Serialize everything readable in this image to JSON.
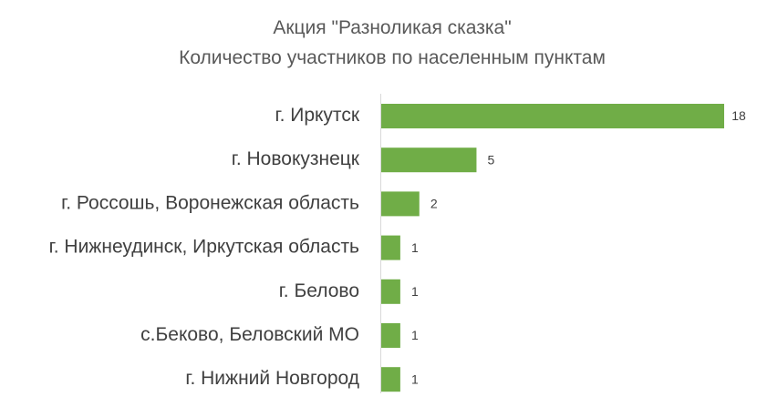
{
  "chart_data": {
    "type": "bar",
    "orientation": "horizontal",
    "title": "Акция \"Разноликая сказка\"",
    "subtitle": "Количество участников по населенным пунктам",
    "categories": [
      "г. Иркутск",
      "г. Новокузнецк",
      "г. Россошь, Воронежская область",
      "г. Нижнеудинск, Иркутская область",
      "г. Белово",
      "с.Беково, Беловский МО",
      "г. Нижний Новгород"
    ],
    "values": [
      18,
      5,
      2,
      1,
      1,
      1,
      1
    ],
    "xlabel": "",
    "ylabel": "",
    "xlim": [
      0,
      18
    ],
    "grid": false,
    "legend": "none",
    "data_labels": true,
    "bar_color": "#70ad47",
    "axis_color": "#d9d9d9"
  }
}
